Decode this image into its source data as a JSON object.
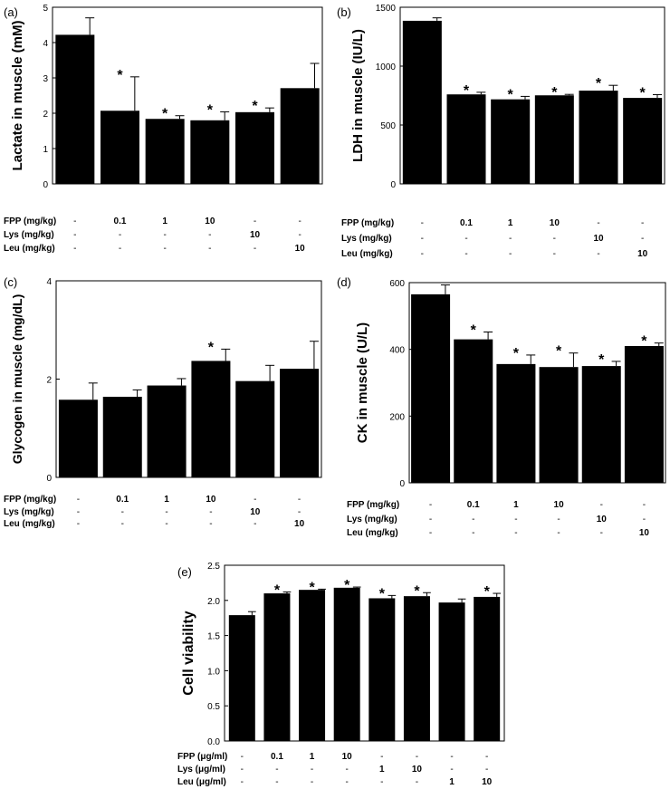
{
  "colors": {
    "bar": "#000000",
    "axis": "#000000",
    "background": "#ffffff"
  },
  "chart_data": [
    {
      "panel": "(a)",
      "type": "bar",
      "ylabel": "Lactate in muscle (mM)",
      "ylim": [
        0,
        5
      ],
      "yticks": [
        0,
        1,
        2,
        3,
        4,
        5
      ],
      "values": [
        4.22,
        2.07,
        1.84,
        1.8,
        2.03,
        2.71
      ],
      "errors": [
        0.48,
        0.96,
        0.09,
        0.24,
        0.12,
        0.7
      ],
      "significance": [
        "",
        "*",
        "*",
        "*",
        "*",
        ""
      ],
      "table": [
        {
          "label": "FPP (mg/kg)",
          "cells": [
            "-",
            "0.1",
            "1",
            "10",
            "-",
            "-"
          ]
        },
        {
          "label": "Lys (mg/kg)",
          "cells": [
            "-",
            "-",
            "-",
            "-",
            "10",
            "-"
          ]
        },
        {
          "label": "Leu (mg/kg)",
          "cells": [
            "-",
            "-",
            "-",
            "-",
            "-",
            "10"
          ]
        }
      ]
    },
    {
      "panel": "(b)",
      "type": "bar",
      "ylabel": "LDH in muscle (IU/L)",
      "ylim": [
        0,
        1500
      ],
      "yticks": [
        0,
        500,
        1000,
        1500
      ],
      "values": [
        1385,
        760,
        718,
        752,
        792,
        730
      ],
      "errors": [
        25,
        18,
        25,
        8,
        45,
        28
      ],
      "significance": [
        "",
        "*",
        "*",
        "*",
        "*",
        "*"
      ],
      "table": [
        {
          "label": "FPP (mg/kg)",
          "cells": [
            "-",
            "0.1",
            "1",
            "10",
            "-",
            "-"
          ]
        },
        {
          "label": "Lys (mg/kg)",
          "cells": [
            "-",
            "-",
            "-",
            "-",
            "10",
            "-"
          ]
        },
        {
          "label": "Leu (mg/kg)",
          "cells": [
            "-",
            "-",
            "-",
            "-",
            "-",
            "10"
          ]
        }
      ]
    },
    {
      "panel": "(c)",
      "type": "bar",
      "ylabel": "Glycogen in muscle (mg/dL)",
      "ylim": [
        0,
        4
      ],
      "yticks": [
        0,
        2,
        4
      ],
      "values": [
        1.58,
        1.64,
        1.87,
        2.37,
        1.96,
        2.21
      ],
      "errors": [
        0.34,
        0.14,
        0.14,
        0.24,
        0.32,
        0.56
      ],
      "significance": [
        "",
        "",
        "",
        "*",
        "",
        ""
      ],
      "table": [
        {
          "label": "FPP (mg/kg)",
          "cells": [
            "-",
            "0.1",
            "1",
            "10",
            "-",
            "-"
          ]
        },
        {
          "label": "Lys (mg/kg)",
          "cells": [
            "-",
            "-",
            "-",
            "-",
            "10",
            "-"
          ]
        },
        {
          "label": "Leu (mg/kg)",
          "cells": [
            "-",
            "-",
            "-",
            "-",
            "-",
            "10"
          ]
        }
      ]
    },
    {
      "panel": "(d)",
      "type": "bar",
      "ylabel": "CK in muscle (U/L)",
      "ylim": [
        0,
        600
      ],
      "yticks": [
        0,
        200,
        400,
        600
      ],
      "values": [
        565,
        430,
        356,
        347,
        350,
        410
      ],
      "errors": [
        28,
        22,
        27,
        42,
        14,
        9
      ],
      "significance": [
        "",
        "*",
        "*",
        "*",
        "*",
        "*"
      ],
      "table": [
        {
          "label": "FPP (mg/kg)",
          "cells": [
            "-",
            "0.1",
            "1",
            "10",
            "-",
            "-"
          ]
        },
        {
          "label": "Lys (mg/kg)",
          "cells": [
            "-",
            "-",
            "-",
            "-",
            "10",
            "-"
          ]
        },
        {
          "label": "Leu (mg/kg)",
          "cells": [
            "-",
            "-",
            "-",
            "-",
            "-",
            "10"
          ]
        }
      ]
    },
    {
      "panel": "(e)",
      "type": "bar",
      "ylabel": "Cell viability",
      "ylim": [
        0,
        2.5
      ],
      "yticks": [
        0.0,
        0.5,
        1.0,
        1.5,
        2.0,
        2.5
      ],
      "ytick_labels": [
        "0.0",
        "0.5",
        "1.0",
        "1.5",
        "2.0",
        "2.5"
      ],
      "values": [
        1.79,
        2.1,
        2.15,
        2.18,
        2.03,
        2.06,
        1.97,
        2.05
      ],
      "errors": [
        0.05,
        0.02,
        0.01,
        0.01,
        0.04,
        0.05,
        0.05,
        0.05
      ],
      "significance": [
        "",
        "*",
        "*",
        "*",
        "*",
        "*",
        "",
        "*"
      ],
      "table": [
        {
          "label": "FPP (μg/ml)",
          "cells": [
            "-",
            "0.1",
            "1",
            "10",
            "-",
            "-",
            "-",
            "-"
          ]
        },
        {
          "label": "Lys (μg/ml)",
          "cells": [
            "-",
            "-",
            "-",
            "-",
            "1",
            "10",
            "-",
            "-"
          ]
        },
        {
          "label": "Leu (μg/ml)",
          "cells": [
            "-",
            "-",
            "-",
            "-",
            "-",
            "-",
            "1",
            "10"
          ]
        }
      ]
    }
  ]
}
